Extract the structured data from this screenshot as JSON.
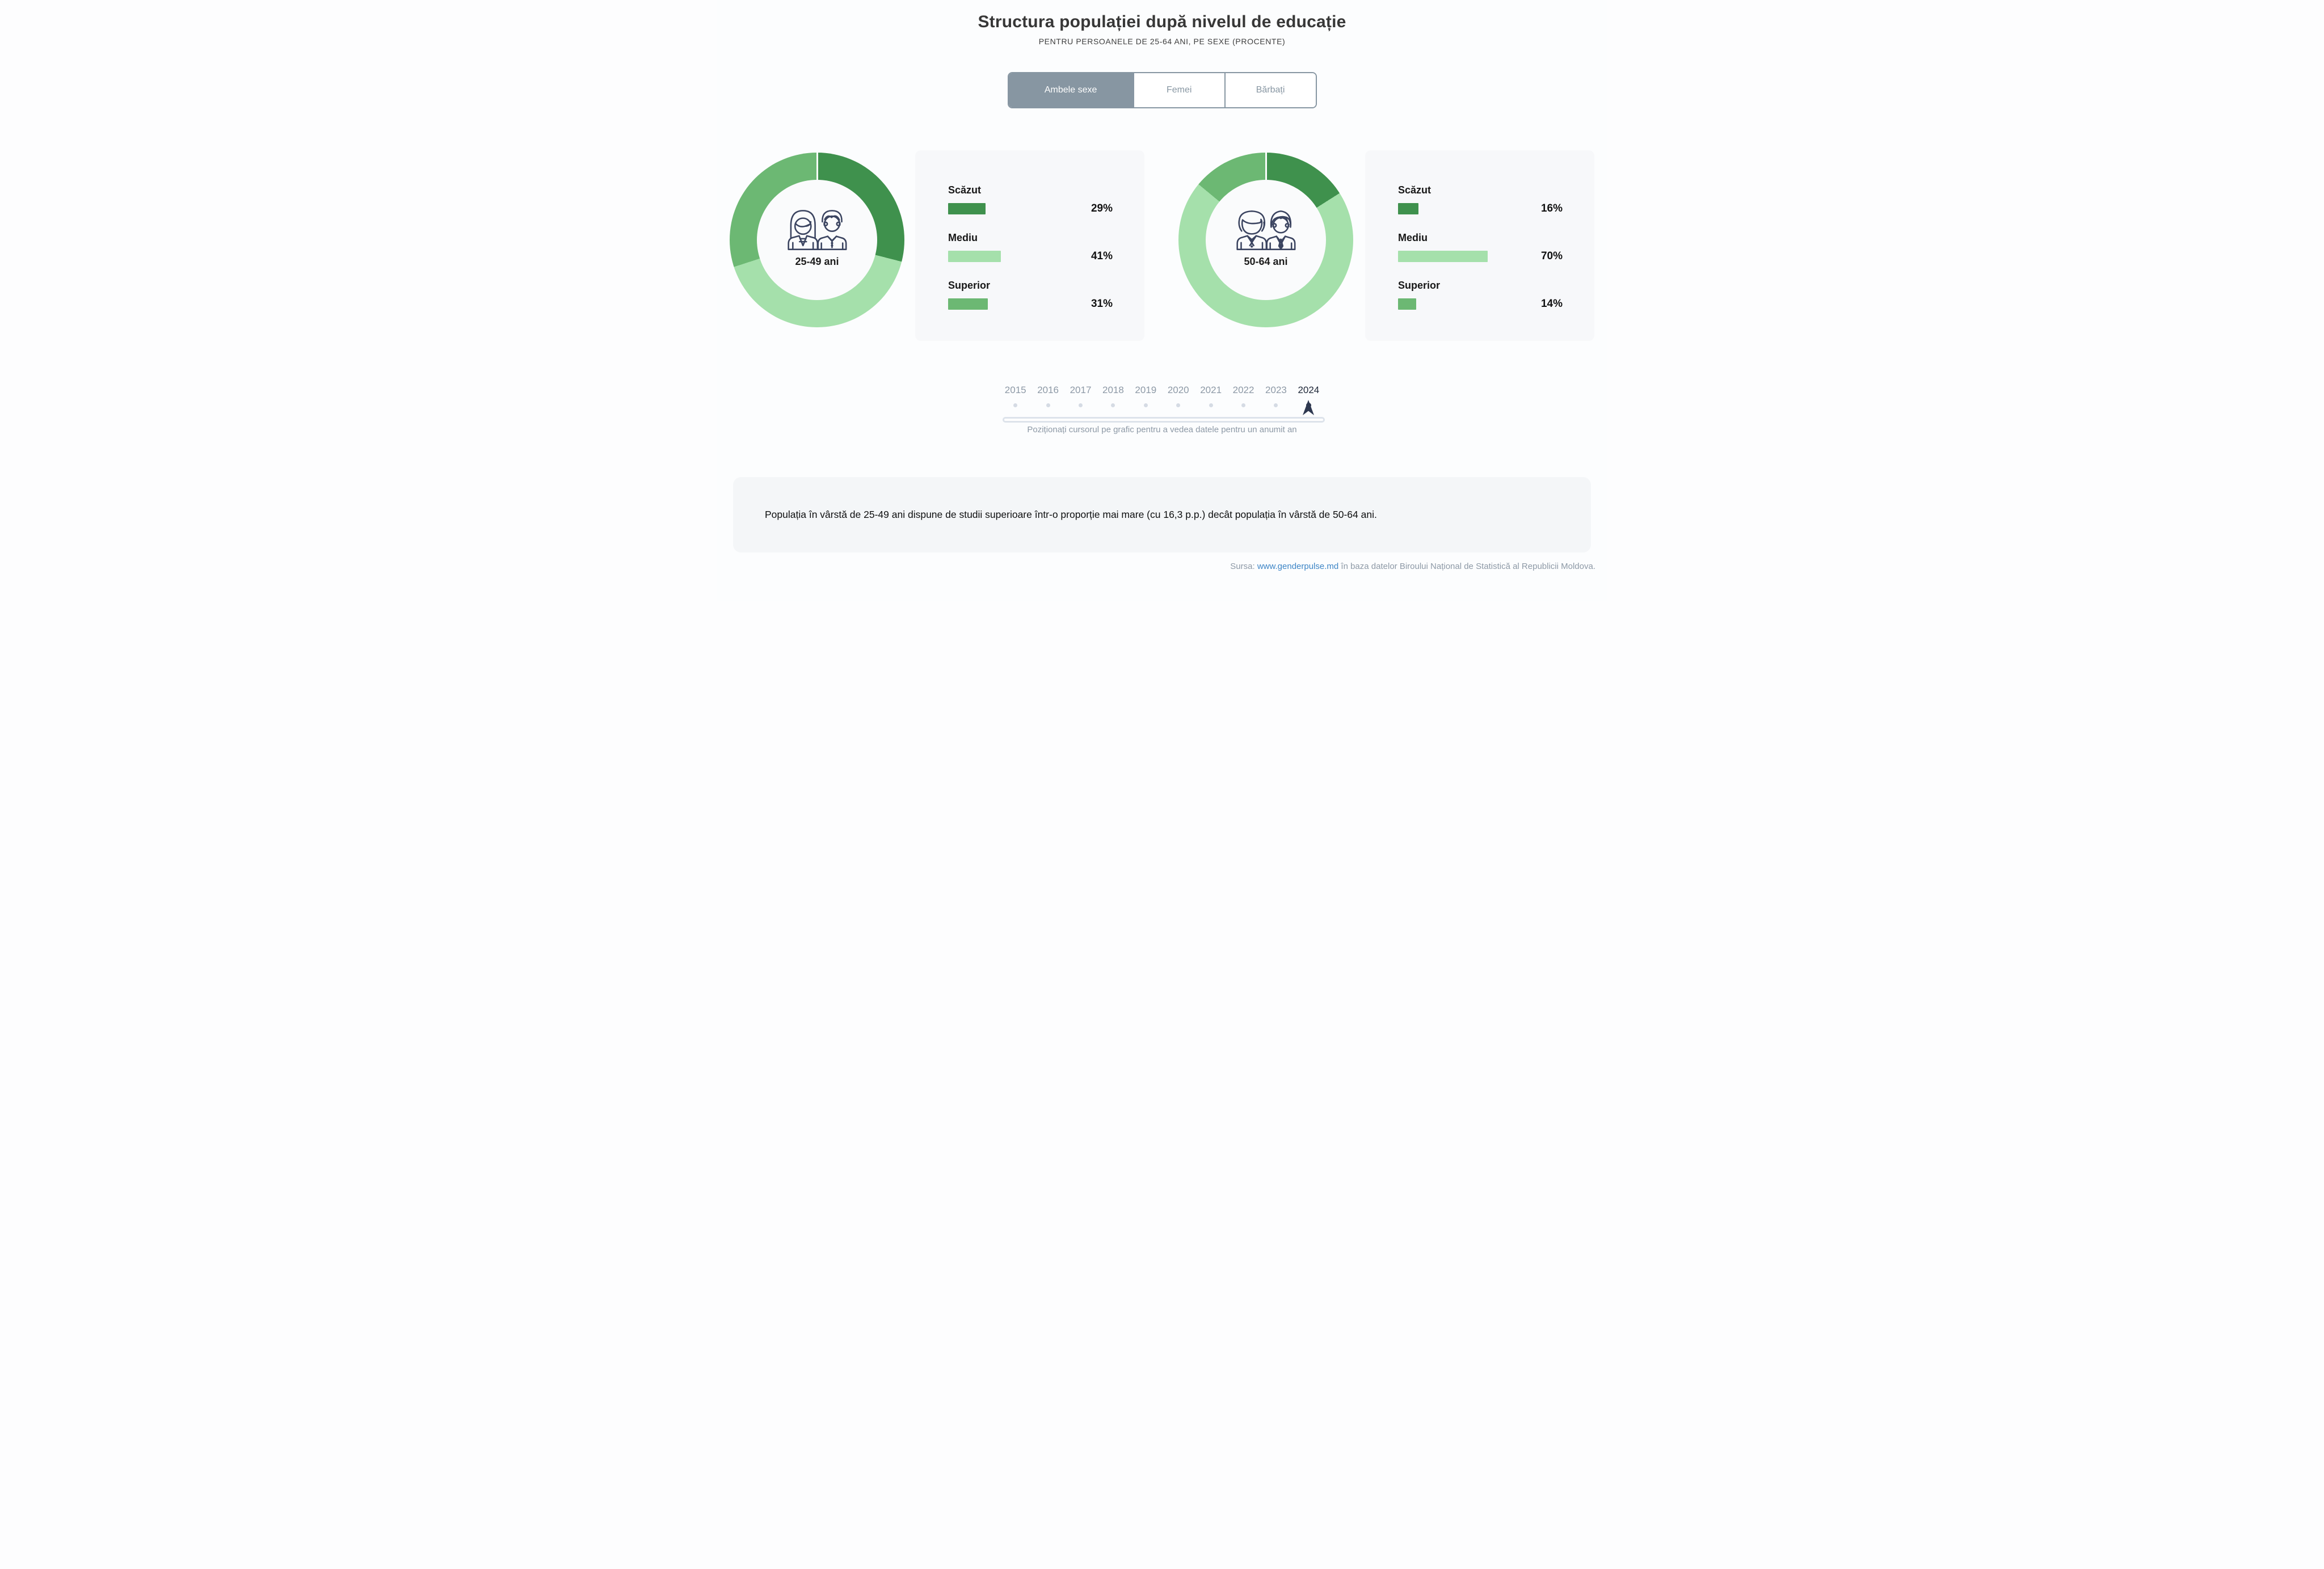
{
  "page": {
    "title": "Structura populației după nivelul de educație",
    "subtitle": "PENTRU PERSOANELE DE 25-64 ANI, PE SEXE (PROCENTE)"
  },
  "tabs": [
    {
      "label": "Ambele sexe",
      "selected": true
    },
    {
      "label": "Femei",
      "selected": false
    },
    {
      "label": "Bărbați",
      "selected": false
    }
  ],
  "chart_data": [
    {
      "type": "pie",
      "variant": "donut",
      "center_label": "25-49 ani",
      "icon": "young-couple-icon",
      "segments": [
        {
          "label": "Scăzut",
          "value": 29,
          "pct": "29%",
          "color": "#3f914d"
        },
        {
          "label": "Mediu",
          "value": 41,
          "pct": "41%",
          "color": "#a5e0ab"
        },
        {
          "label": "Superior",
          "value": 31,
          "pct": "31%",
          "color": "#6cb873"
        }
      ],
      "start_angle_deg": 0,
      "direction": "clockwise"
    },
    {
      "type": "pie",
      "variant": "donut",
      "center_label": "50-64 ani",
      "icon": "older-couple-icon",
      "segments": [
        {
          "label": "Scăzut",
          "value": 16,
          "pct": "16%",
          "color": "#3f914d"
        },
        {
          "label": "Mediu",
          "value": 70,
          "pct": "70%",
          "color": "#a5e0ab"
        },
        {
          "label": "Superior",
          "value": 14,
          "pct": "14%",
          "color": "#6cb873"
        }
      ],
      "start_angle_deg": 0,
      "direction": "clockwise"
    }
  ],
  "timeline": {
    "years": [
      "2015",
      "2016",
      "2017",
      "2018",
      "2019",
      "2020",
      "2021",
      "2022",
      "2023",
      "2024"
    ],
    "selected": "2024",
    "hint": "Poziționați cursorul pe grafic pentru a vedea datele pentru un anumit an"
  },
  "summary": "Populația în vârstă de 25-49 ani dispune de studii superioare într-o proporție mai mare (cu 16,3 p.p.) decât populația în vârstă de 50-64 ani.",
  "footer": {
    "prefix": "Sursa: ",
    "link": "www.genderpulse.md",
    "suffix": " în baza datelor Biroului Național de Statistică al Republicii Moldova."
  },
  "colors": {
    "green_dark": "#3f914d",
    "green_medium": "#6cb873",
    "green_light": "#a5e0ab",
    "tab_gray_blue": "#8796a2",
    "navy": "#2e3850",
    "icon_stroke": "#3b4460",
    "year_gray": "#8d99a6",
    "track_gray": "#dde3eb",
    "dot_gray": "#d5dbe4",
    "panel_bg": "#f7f8fa",
    "summary_bg": "#f4f6f8",
    "link_blue": "#3d85c6"
  }
}
